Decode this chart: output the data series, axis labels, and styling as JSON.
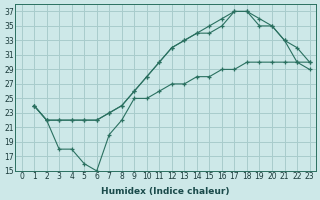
{
  "xlabel": "Humidex (Indice chaleur)",
  "ylabel": "",
  "background_color": "#cde8e8",
  "grid_color": "#a8cccc",
  "line_color": "#2a7060",
  "xlim": [
    -0.5,
    23.5
  ],
  "ylim": [
    15,
    38
  ],
  "xticks": [
    0,
    1,
    2,
    3,
    4,
    5,
    6,
    7,
    8,
    9,
    10,
    11,
    12,
    13,
    14,
    15,
    16,
    17,
    18,
    19,
    20,
    21,
    22,
    23
  ],
  "yticks": [
    15,
    17,
    19,
    21,
    23,
    25,
    27,
    29,
    31,
    33,
    35,
    37
  ],
  "series": [
    {
      "x": [
        1,
        2,
        3,
        4,
        5,
        6,
        7,
        8,
        9,
        10,
        11,
        12,
        13,
        14,
        15,
        16,
        17,
        18,
        19,
        20,
        21,
        22,
        23
      ],
      "y": [
        24,
        22,
        22,
        22,
        22,
        22,
        23,
        24,
        26,
        28,
        30,
        32,
        33,
        34,
        35,
        36,
        37,
        37,
        36,
        35,
        33,
        32,
        30
      ]
    },
    {
      "x": [
        1,
        2,
        3,
        4,
        5,
        6,
        7,
        8,
        9,
        10,
        11,
        12,
        13,
        14,
        15,
        16,
        17,
        18,
        19,
        20,
        21,
        22,
        23
      ],
      "y": [
        24,
        22,
        22,
        22,
        22,
        22,
        23,
        24,
        26,
        28,
        30,
        32,
        33,
        34,
        34,
        35,
        37,
        37,
        35,
        35,
        33,
        30,
        29
      ]
    },
    {
      "x": [
        1,
        2,
        3,
        4,
        5,
        6,
        7,
        8,
        9,
        10,
        11,
        12,
        13,
        14,
        15,
        16,
        17,
        18,
        19,
        20,
        21,
        22,
        23
      ],
      "y": [
        24,
        22,
        18,
        18,
        16,
        15,
        20,
        22,
        25,
        25,
        26,
        27,
        27,
        28,
        28,
        29,
        29,
        30,
        30,
        30,
        30,
        30,
        30
      ]
    }
  ]
}
